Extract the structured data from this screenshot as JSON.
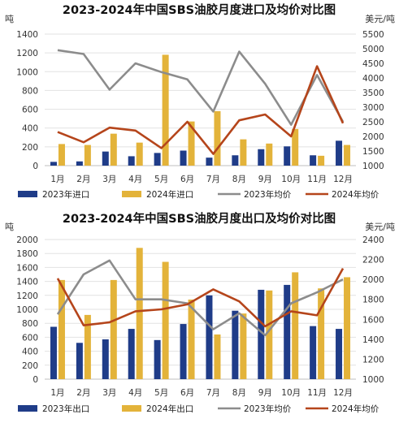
{
  "chart_data": [
    {
      "type": "bar",
      "title": "2023-2024年中国SBS油胶月度进口及均价对比图",
      "ylabel": "吨",
      "y2label": "美元/吨",
      "categories": [
        "1月",
        "2月",
        "3月",
        "4月",
        "5月",
        "6月",
        "7月",
        "8月",
        "9月",
        "10月",
        "11月",
        "12月"
      ],
      "ylim": [
        0,
        1400
      ],
      "yticks": [
        "0",
        "200",
        "400",
        "600",
        "800",
        "1000",
        "1200",
        "1400"
      ],
      "y2lim": [
        1000,
        5500
      ],
      "y2ticks": [
        "1000",
        "1500",
        "2000",
        "2500",
        "3000",
        "3500",
        "4000",
        "4500",
        "5000",
        "5500"
      ],
      "legend_position": "bottom",
      "grid": true,
      "series": [
        {
          "name": "2023年进口",
          "kind": "bar",
          "axis": "left",
          "color": "#1f3c88",
          "values": [
            40,
            45,
            150,
            100,
            135,
            160,
            85,
            110,
            175,
            205,
            110,
            265
          ]
        },
        {
          "name": "2024年进口",
          "kind": "bar",
          "axis": "left",
          "color": "#e3b33a",
          "values": [
            230,
            220,
            340,
            245,
            1180,
            470,
            580,
            280,
            235,
            390,
            105,
            220
          ]
        },
        {
          "name": "2023年均价",
          "kind": "line",
          "axis": "right",
          "color": "#8c8c8c",
          "values": [
            4950,
            4820,
            3600,
            4500,
            4200,
            3950,
            2850,
            4900,
            3800,
            2400,
            4100,
            2500
          ]
        },
        {
          "name": "2024年均价",
          "kind": "line",
          "axis": "right",
          "color": "#b5451b",
          "values": [
            2150,
            1800,
            2300,
            2200,
            1600,
            2500,
            1400,
            2550,
            2750,
            2000,
            4400,
            2450
          ]
        }
      ]
    },
    {
      "type": "bar",
      "title": "2023-2024年中国SBS油胶月度出口及均价对比图",
      "ylabel": "吨",
      "y2label": "美元/吨",
      "categories": [
        "1月",
        "2月",
        "3月",
        "4月",
        "5月",
        "6月",
        "7月",
        "8月",
        "9月",
        "10月",
        "11月",
        "12月"
      ],
      "ylim": [
        0,
        2000
      ],
      "yticks": [
        "0",
        "200",
        "400",
        "600",
        "800",
        "1000",
        "1200",
        "1400",
        "1600",
        "1800",
        "2000"
      ],
      "y2lim": [
        1000,
        2400
      ],
      "y2ticks": [
        "1000",
        "1200",
        "1400",
        "1600",
        "1800",
        "2000",
        "2200",
        "2400"
      ],
      "legend_position": "bottom",
      "grid": true,
      "series": [
        {
          "name": "2023年出口",
          "kind": "bar",
          "axis": "left",
          "color": "#1f3c88",
          "values": [
            750,
            520,
            570,
            720,
            560,
            790,
            1200,
            980,
            1280,
            1350,
            760,
            720
          ]
        },
        {
          "name": "2024年出口",
          "kind": "bar",
          "axis": "left",
          "color": "#e3b33a",
          "values": [
            1420,
            920,
            1420,
            1880,
            1680,
            1140,
            640,
            940,
            1270,
            1530,
            1300,
            1460
          ]
        },
        {
          "name": "2023年均价",
          "kind": "line",
          "axis": "right",
          "color": "#8c8c8c",
          "values": [
            1650,
            2050,
            2190,
            1800,
            1800,
            1760,
            1500,
            1660,
            1440,
            1760,
            1870,
            2000
          ]
        },
        {
          "name": "2024年均价",
          "kind": "line",
          "axis": "right",
          "color": "#b5451b",
          "values": [
            2010,
            1540,
            1570,
            1680,
            1700,
            1750,
            1900,
            1780,
            1530,
            1680,
            1640,
            2110
          ]
        }
      ]
    }
  ]
}
